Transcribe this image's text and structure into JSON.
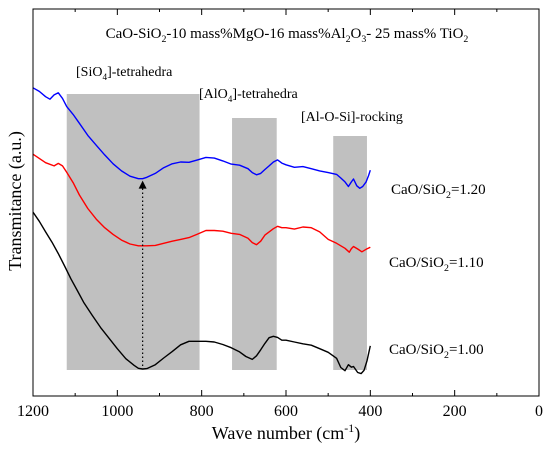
{
  "chart_data": {
    "type": "line",
    "title": {
      "parts": [
        {
          "t": "CaO-SiO"
        },
        {
          "t": "2",
          "sub": true
        },
        {
          "t": "-10 mass%MgO-16 mass%Al"
        },
        {
          "t": "2",
          "sub": true
        },
        {
          "t": "O"
        },
        {
          "t": "3",
          "sub": true
        },
        {
          "t": "- 25 mass% TiO"
        },
        {
          "t": "2",
          "sub": true
        }
      ]
    },
    "xlabel": {
      "parts": [
        {
          "t": "Wave number (cm"
        },
        {
          "t": "-1",
          "sup": true
        },
        {
          "t": ")"
        }
      ]
    },
    "ylabel": "Transmitance (a.u.)",
    "xlim": [
      1200,
      0
    ],
    "x_ticks": [
      1200,
      1000,
      800,
      600,
      400,
      200,
      0
    ],
    "grid": false,
    "regions": [
      {
        "from": 1120,
        "to": 805,
        "label": {
          "parts": [
            {
              "t": "[SiO"
            },
            {
              "t": "4",
              "sub": true
            },
            {
              "t": "]-tetrahedra"
            }
          ]
        }
      },
      {
        "from": 728,
        "to": 622,
        "label": {
          "parts": [
            {
              "t": "[AlO"
            },
            {
              "t": "4",
              "sub": true
            },
            {
              "t": "]-tetrahedra"
            }
          ]
        }
      },
      {
        "from": 488,
        "to": 408,
        "label": {
          "parts": [
            {
              "t": "[Al-O-Si]-rocking"
            }
          ]
        }
      }
    ],
    "arrow": {
      "x": 940,
      "from_series": "c100",
      "to_series": "c120"
    },
    "series": [
      {
        "id": "c120",
        "color": "#0000ff",
        "label": {
          "parts": [
            {
              "t": "CaO/SiO"
            },
            {
              "t": "2",
              "sub": true
            },
            {
              "t": "=1.20"
            }
          ]
        },
        "x": [
          1200,
          1185,
          1170,
          1160,
          1150,
          1140,
          1130,
          1120,
          1105,
          1090,
          1070,
          1050,
          1030,
          1010,
          990,
          970,
          950,
          940,
          930,
          910,
          890,
          870,
          850,
          830,
          810,
          790,
          770,
          750,
          730,
          710,
          690,
          680,
          670,
          660,
          650,
          640,
          630,
          620,
          610,
          600,
          580,
          560,
          540,
          520,
          500,
          480,
          470,
          460,
          452,
          445,
          440,
          432,
          425,
          418,
          410,
          404,
          400
        ],
        "y": [
          0.84,
          0.83,
          0.815,
          0.808,
          0.82,
          0.826,
          0.81,
          0.787,
          0.765,
          0.74,
          0.706,
          0.678,
          0.651,
          0.626,
          0.606,
          0.591,
          0.584,
          0.584,
          0.588,
          0.599,
          0.615,
          0.626,
          0.631,
          0.63,
          0.637,
          0.644,
          0.642,
          0.634,
          0.625,
          0.622,
          0.612,
          0.601,
          0.595,
          0.599,
          0.61,
          0.62,
          0.631,
          0.637,
          0.628,
          0.623,
          0.616,
          0.618,
          0.612,
          0.606,
          0.601,
          0.596,
          0.586,
          0.575,
          0.562,
          0.575,
          0.583,
          0.564,
          0.557,
          0.562,
          0.575,
          0.593,
          0.608
        ]
      },
      {
        "id": "c110",
        "color": "#ff0000",
        "label": {
          "parts": [
            {
              "t": "CaO/SiO"
            },
            {
              "t": "2",
              "sub": true
            },
            {
              "t": "=1.10"
            }
          ]
        },
        "x": [
          1200,
          1185,
          1170,
          1150,
          1140,
          1130,
          1120,
          1105,
          1090,
          1070,
          1050,
          1030,
          1010,
          990,
          970,
          950,
          940,
          930,
          910,
          890,
          870,
          850,
          830,
          810,
          790,
          770,
          750,
          730,
          710,
          690,
          680,
          670,
          660,
          650,
          640,
          630,
          620,
          610,
          600,
          580,
          560,
          540,
          520,
          500,
          480,
          460,
          450,
          445,
          440,
          430,
          420,
          410,
          400
        ],
        "y": [
          0.653,
          0.641,
          0.629,
          0.62,
          0.627,
          0.62,
          0.602,
          0.573,
          0.538,
          0.5,
          0.47,
          0.446,
          0.427,
          0.411,
          0.4,
          0.395,
          0.395,
          0.395,
          0.396,
          0.402,
          0.408,
          0.413,
          0.418,
          0.428,
          0.438,
          0.438,
          0.436,
          0.43,
          0.427,
          0.416,
          0.404,
          0.398,
          0.408,
          0.425,
          0.434,
          0.443,
          0.45,
          0.446,
          0.446,
          0.442,
          0.448,
          0.446,
          0.434,
          0.413,
          0.402,
          0.388,
          0.377,
          0.387,
          0.393,
          0.386,
          0.378,
          0.385,
          0.391
        ]
      },
      {
        "id": "c100",
        "color": "#000000",
        "label": {
          "parts": [
            {
              "t": "CaO/SiO"
            },
            {
              "t": "2",
              "sub": true
            },
            {
              "t": "=1.00"
            }
          ]
        },
        "x": [
          1200,
          1185,
          1170,
          1155,
          1140,
          1125,
          1110,
          1095,
          1080,
          1060,
          1040,
          1020,
          1000,
          980,
          960,
          950,
          940,
          930,
          910,
          890,
          870,
          850,
          830,
          810,
          790,
          770,
          750,
          730,
          710,
          695,
          680,
          670,
          660,
          650,
          640,
          630,
          620,
          610,
          600,
          580,
          560,
          540,
          520,
          500,
          480,
          470,
          460,
          452,
          445,
          440,
          430,
          422,
          415,
          408,
          400
        ],
        "y": [
          0.49,
          0.464,
          0.434,
          0.405,
          0.373,
          0.338,
          0.302,
          0.269,
          0.236,
          0.2,
          0.165,
          0.135,
          0.105,
          0.077,
          0.058,
          0.05,
          0.048,
          0.049,
          0.06,
          0.079,
          0.097,
          0.116,
          0.126,
          0.126,
          0.126,
          0.124,
          0.117,
          0.108,
          0.096,
          0.083,
          0.075,
          0.085,
          0.102,
          0.12,
          0.136,
          0.14,
          0.137,
          0.129,
          0.129,
          0.124,
          0.119,
          0.115,
          0.105,
          0.095,
          0.078,
          0.052,
          0.043,
          0.06,
          0.053,
          0.055,
          0.038,
          0.035,
          0.044,
          0.071,
          0.113
        ]
      }
    ]
  }
}
